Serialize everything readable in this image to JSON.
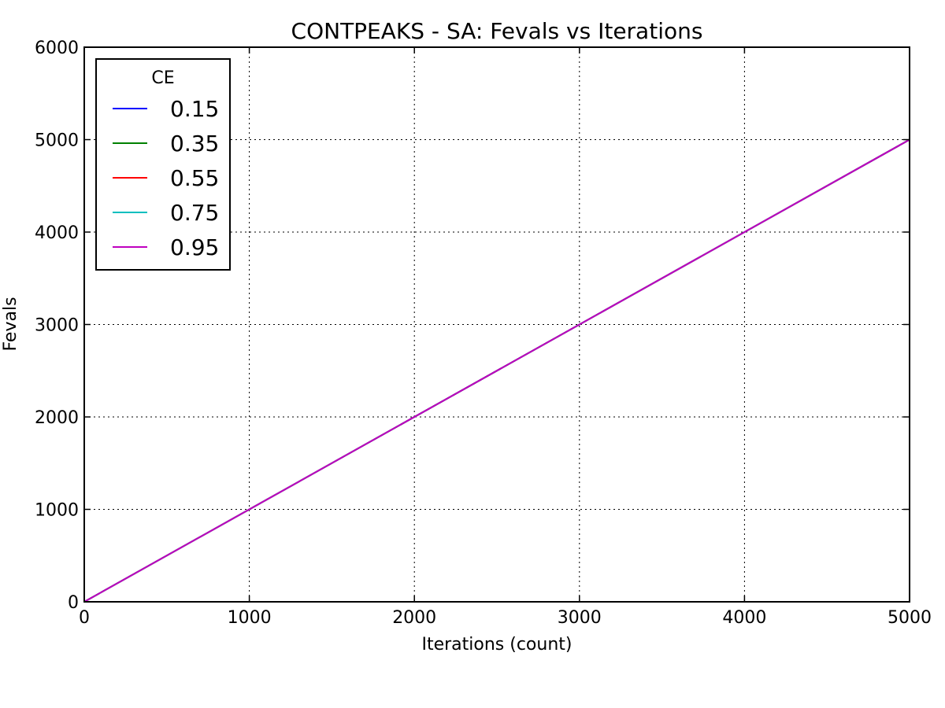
{
  "chart_data": {
    "type": "line",
    "title": "CONTPEAKS - SA: Fevals vs Iterations",
    "xlabel": "Iterations (count)",
    "ylabel": "Fevals",
    "xlim": [
      0,
      5000
    ],
    "ylim": [
      0,
      6000
    ],
    "x_ticks": [
      0,
      1000,
      2000,
      3000,
      4000,
      5000
    ],
    "y_ticks": [
      0,
      1000,
      2000,
      3000,
      4000,
      5000,
      6000
    ],
    "x_tick_labels": [
      "0",
      "1000",
      "2000",
      "3000",
      "4000",
      "5000"
    ],
    "y_tick_labels": [
      "0",
      "1000",
      "2000",
      "3000",
      "4000",
      "5000",
      "6000"
    ],
    "grid": true,
    "legend": {
      "title": "CE",
      "placement": "top-left"
    },
    "series": [
      {
        "name": "0.15",
        "color": "#0000ff",
        "x": [
          0,
          5000
        ],
        "y": [
          0,
          5000
        ]
      },
      {
        "name": "0.35",
        "color": "#008000",
        "x": [
          0,
          5000
        ],
        "y": [
          0,
          5000
        ]
      },
      {
        "name": "0.55",
        "color": "#ff0000",
        "x": [
          0,
          5000
        ],
        "y": [
          0,
          5000
        ]
      },
      {
        "name": "0.75",
        "color": "#00bfbf",
        "x": [
          0,
          5000
        ],
        "y": [
          0,
          5000
        ]
      },
      {
        "name": "0.95",
        "color": "#bf00bf",
        "x": [
          0,
          5000
        ],
        "y": [
          0,
          5000
        ]
      }
    ]
  }
}
